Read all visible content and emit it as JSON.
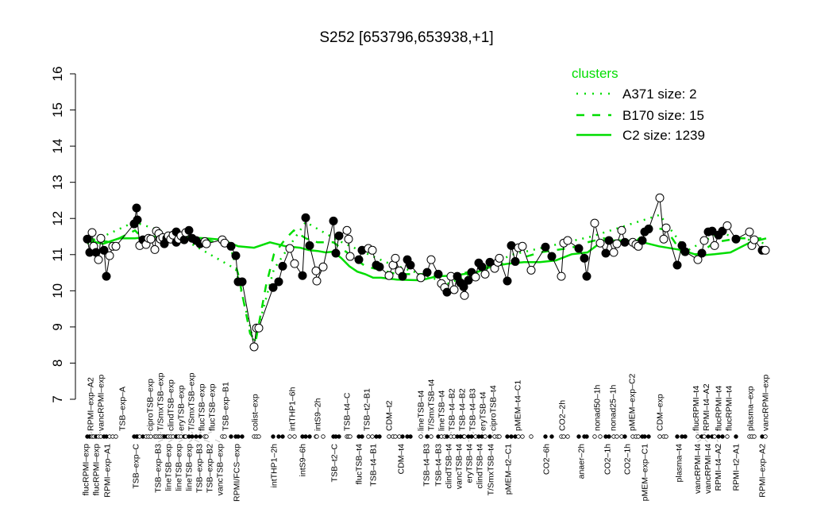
{
  "chart_data": {
    "type": "line",
    "title": "S252 [653796,653938,+1]",
    "xlabel": "",
    "ylabel": "",
    "ylim": [
      7,
      16
    ],
    "xlim": [
      0,
      215
    ],
    "yticks": [
      7,
      8,
      9,
      10,
      11,
      12,
      13,
      14,
      15,
      16
    ],
    "grid": false,
    "legend": {
      "title": "clusters",
      "placement": "top-right",
      "color": "#00dd00",
      "entries": [
        {
          "label": "A371 size: 2",
          "style": "dotted"
        },
        {
          "label": "B170 size: 15",
          "style": "dashed"
        },
        {
          "label": "C2 size: 1239",
          "style": "solid"
        }
      ]
    },
    "colors": {
      "points": "#000000",
      "clusters": "#00dd00"
    },
    "points_note_fields": [
      "x",
      "value",
      "filled"
    ],
    "points": [
      [
        1.25,
        11.43,
        1
      ],
      [
        2,
        11.06,
        1
      ],
      [
        2.75,
        11.61,
        0
      ],
      [
        3.25,
        11.23,
        0
      ],
      [
        4,
        11.06,
        1
      ],
      [
        4.75,
        10.86,
        0
      ],
      [
        5.5,
        11.45,
        0
      ],
      [
        6.5,
        11.12,
        1
      ],
      [
        7.25,
        10.4,
        1
      ],
      [
        8.25,
        10.97,
        0
      ],
      [
        9.25,
        11.23,
        0
      ],
      [
        10.25,
        11.23,
        0
      ],
      [
        16,
        11.85,
        1
      ],
      [
        16.75,
        12.29,
        1
      ],
      [
        17,
        11.96,
        1
      ],
      [
        17.75,
        11.25,
        0
      ],
      [
        18.75,
        11.41,
        1
      ],
      [
        19.75,
        11.28,
        0
      ],
      [
        20.5,
        11.45,
        0
      ],
      [
        21.25,
        11.43,
        0
      ],
      [
        22.5,
        11.14,
        0
      ],
      [
        23,
        11.65,
        0
      ],
      [
        23.75,
        11.58,
        0
      ],
      [
        24.25,
        11.43,
        0
      ],
      [
        25,
        11.47,
        0
      ],
      [
        25.5,
        11.3,
        1
      ],
      [
        26.25,
        11.45,
        1
      ],
      [
        26.75,
        11.52,
        0
      ],
      [
        27.5,
        11.43,
        0
      ],
      [
        28.25,
        11.54,
        0
      ],
      [
        29.25,
        11.63,
        1
      ],
      [
        29.25,
        11.34,
        1
      ],
      [
        30,
        11.43,
        0
      ],
      [
        30.75,
        11.52,
        0
      ],
      [
        31.75,
        11.41,
        1
      ],
      [
        32.25,
        11.61,
        0
      ],
      [
        33.25,
        11.67,
        1
      ],
      [
        34.25,
        11.45,
        1
      ],
      [
        35.5,
        11.39,
        1
      ],
      [
        36.75,
        11.3,
        1
      ],
      [
        38.25,
        11.36,
        0
      ],
      [
        38.75,
        11.3,
        0
      ],
      [
        43.75,
        11.41,
        0
      ],
      [
        44.5,
        11.32,
        0
      ],
      [
        46.5,
        11.23,
        1
      ],
      [
        48,
        10.97,
        1
      ],
      [
        48.75,
        10.25,
        1
      ],
      [
        50,
        10.25,
        1
      ],
      [
        53.75,
        8.45,
        0
      ],
      [
        54.5,
        8.97,
        0
      ],
      [
        55.25,
        8.97,
        0
      ],
      [
        59.75,
        10.09,
        1
      ],
      [
        61.5,
        10.25,
        1
      ],
      [
        62.75,
        10.68,
        1
      ],
      [
        65,
        11.17,
        0
      ],
      [
        66.5,
        10.75,
        0
      ],
      [
        69,
        10.42,
        1
      ],
      [
        70,
        12.02,
        1
      ],
      [
        71.25,
        11.25,
        1
      ],
      [
        73.25,
        10.55,
        0
      ],
      [
        73.5,
        10.27,
        0
      ],
      [
        75.5,
        10.66,
        0
      ],
      [
        78.75,
        11.93,
        1
      ],
      [
        79.5,
        11.04,
        1
      ],
      [
        80.5,
        11.52,
        1
      ],
      [
        83,
        11.67,
        0
      ],
      [
        83.5,
        11.43,
        0
      ],
      [
        84,
        10.95,
        0
      ],
      [
        86.75,
        10.86,
        1
      ],
      [
        87.75,
        11.12,
        1
      ],
      [
        89.75,
        11.17,
        0
      ],
      [
        91,
        11.12,
        0
      ],
      [
        92.25,
        10.71,
        1
      ],
      [
        93.25,
        10.66,
        1
      ],
      [
        96.25,
        10.42,
        0
      ],
      [
        97.5,
        10.71,
        0
      ],
      [
        98.25,
        10.9,
        0
      ],
      [
        99.5,
        10.55,
        0
      ],
      [
        100.5,
        10.4,
        1
      ],
      [
        102,
        10.86,
        1
      ],
      [
        103,
        10.71,
        1
      ],
      [
        106.25,
        10.36,
        0
      ],
      [
        108.25,
        10.51,
        1
      ],
      [
        109.5,
        10.86,
        0
      ],
      [
        111.75,
        10.46,
        1
      ],
      [
        112.75,
        10.2,
        0
      ],
      [
        113.75,
        10.09,
        0
      ],
      [
        114.5,
        9.96,
        1
      ],
      [
        115.75,
        10.4,
        0
      ],
      [
        116.75,
        10.03,
        0
      ],
      [
        117.75,
        10.4,
        1
      ],
      [
        118.75,
        10.22,
        1
      ],
      [
        119.75,
        10.11,
        1
      ],
      [
        120,
        9.87,
        0
      ],
      [
        121.25,
        10.29,
        1
      ],
      [
        122.25,
        10.51,
        1
      ],
      [
        123.5,
        10.38,
        0
      ],
      [
        124.5,
        10.77,
        1
      ],
      [
        125.5,
        10.66,
        1
      ],
      [
        126.5,
        10.46,
        0
      ],
      [
        128,
        10.79,
        1
      ],
      [
        129.5,
        10.62,
        0
      ],
      [
        130.5,
        10.79,
        0
      ],
      [
        131,
        10.9,
        0
      ],
      [
        133.5,
        10.27,
        1
      ],
      [
        134.75,
        11.25,
        1
      ],
      [
        136,
        10.81,
        1
      ],
      [
        137,
        11.19,
        0
      ],
      [
        138.25,
        11.23,
        0
      ],
      [
        141,
        10.57,
        0
      ],
      [
        145.5,
        11.21,
        1
      ],
      [
        147.5,
        10.95,
        1
      ],
      [
        150.5,
        10.4,
        0
      ],
      [
        151.25,
        11.32,
        0
      ],
      [
        152.5,
        11.39,
        0
      ],
      [
        156,
        11.17,
        1
      ],
      [
        157.75,
        10.9,
        1
      ],
      [
        158.5,
        10.4,
        1
      ],
      [
        161,
        11.87,
        0
      ],
      [
        162.75,
        11.32,
        0
      ],
      [
        164.5,
        11.04,
        1
      ],
      [
        165.5,
        11.39,
        1
      ],
      [
        167,
        11.06,
        0
      ],
      [
        168,
        11.3,
        0
      ],
      [
        169.5,
        11.67,
        0
      ],
      [
        170.5,
        11.34,
        1
      ],
      [
        173,
        11.34,
        0
      ],
      [
        174,
        11.28,
        0
      ],
      [
        174.75,
        11.23,
        0
      ],
      [
        176,
        11.39,
        1
      ],
      [
        176.75,
        11.63,
        1
      ],
      [
        178,
        11.71,
        1
      ],
      [
        181.5,
        12.57,
        0
      ],
      [
        182.75,
        11.43,
        0
      ],
      [
        183.5,
        11.74,
        0
      ],
      [
        187,
        10.71,
        1
      ],
      [
        188.5,
        11.25,
        1
      ],
      [
        189.5,
        11.08,
        1
      ],
      [
        193.5,
        10.86,
        0
      ],
      [
        194.75,
        11.04,
        1
      ],
      [
        195.5,
        11.39,
        0
      ],
      [
        196.75,
        11.63,
        1
      ],
      [
        198,
        11.65,
        1
      ],
      [
        198.75,
        11.25,
        0
      ],
      [
        200,
        11.54,
        1
      ],
      [
        201.25,
        11.65,
        1
      ],
      [
        202.75,
        11.8,
        0
      ],
      [
        205.5,
        11.43,
        1
      ],
      [
        209.75,
        11.63,
        0
      ],
      [
        210.5,
        11.25,
        0
      ],
      [
        211.25,
        11.41,
        0
      ],
      [
        213.75,
        11.12,
        1
      ],
      [
        214.75,
        11.12,
        0
      ]
    ],
    "cluster_lines": {
      "C2": [
        [
          1.25,
          11.39
        ],
        [
          6.25,
          11.3
        ],
        [
          11.25,
          11.45
        ],
        [
          16.25,
          11.45
        ],
        [
          21.25,
          11.5
        ],
        [
          28.75,
          11.5
        ],
        [
          38.75,
          11.45
        ],
        [
          43.75,
          11.41
        ],
        [
          48.75,
          11.23
        ],
        [
          53.75,
          11.19
        ],
        [
          58.75,
          11.34
        ],
        [
          63.75,
          11.23
        ],
        [
          68.25,
          11.19
        ],
        [
          71.25,
          11.12
        ],
        [
          73.75,
          11.1
        ],
        [
          76.25,
          11.06
        ],
        [
          78.75,
          11.08
        ],
        [
          81.25,
          10.9
        ],
        [
          83.75,
          10.68
        ],
        [
          86.25,
          10.53
        ],
        [
          88.75,
          10.46
        ],
        [
          91.25,
          10.36
        ],
        [
          93.75,
          10.36
        ],
        [
          98.75,
          10.31
        ],
        [
          106.25,
          10.29
        ],
        [
          111.25,
          10.4
        ],
        [
          116.25,
          10.42
        ],
        [
          123.75,
          10.51
        ],
        [
          128.75,
          10.68
        ],
        [
          133.75,
          10.75
        ],
        [
          138.75,
          10.79
        ],
        [
          143.75,
          10.79
        ],
        [
          148.75,
          10.84
        ],
        [
          153.75,
          11.01
        ],
        [
          158.75,
          11.06
        ],
        [
          163.75,
          11.39
        ],
        [
          171.25,
          11.39
        ],
        [
          176.25,
          11.34
        ],
        [
          181.25,
          11.23
        ],
        [
          188.75,
          11.12
        ],
        [
          193.75,
          10.97
        ],
        [
          198.75,
          11.01
        ],
        [
          203.75,
          11.06
        ],
        [
          210,
          11.34
        ],
        [
          215,
          11.45
        ]
      ],
      "B170": [
        [
          1.25,
          11.45
        ],
        [
          8.75,
          11.34
        ],
        [
          16.25,
          11.67
        ],
        [
          20,
          11.34
        ],
        [
          23.75,
          11.45
        ],
        [
          38.75,
          11.41
        ],
        [
          46.25,
          11.23
        ],
        [
          48.75,
          10.46
        ],
        [
          52.5,
          8.82
        ],
        [
          54.25,
          8.6
        ],
        [
          57.5,
          10.14
        ],
        [
          60,
          11.01
        ],
        [
          63.75,
          11.45
        ],
        [
          66.25,
          11.67
        ],
        [
          70,
          11.45
        ],
        [
          73.75,
          11.34
        ],
        [
          78.75,
          11.34
        ],
        [
          83.75,
          11.01
        ],
        [
          88.75,
          10.68
        ],
        [
          93.75,
          10.57
        ],
        [
          98.75,
          10.46
        ],
        [
          108.75,
          10.46
        ],
        [
          113.75,
          10.36
        ],
        [
          123.75,
          10.57
        ],
        [
          133.75,
          10.79
        ],
        [
          143.75,
          11.06
        ],
        [
          153.75,
          11.19
        ],
        [
          158.75,
          11.34
        ],
        [
          163.75,
          11.45
        ],
        [
          173.75,
          11.34
        ],
        [
          178.75,
          11.78
        ],
        [
          183.75,
          11.67
        ],
        [
          188.75,
          11.01
        ],
        [
          193.75,
          11.01
        ],
        [
          198.75,
          11.34
        ],
        [
          206.25,
          11.45
        ],
        [
          215,
          11.45
        ]
      ],
      "A371": [
        [
          1.25,
          11.3
        ],
        [
          16,
          11.9
        ],
        [
          30,
          11.5
        ],
        [
          48,
          10.6
        ],
        [
          53.75,
          8.55
        ],
        [
          60,
          10.6
        ],
        [
          70,
          11.9
        ],
        [
          80,
          11.4
        ],
        [
          95,
          10.8
        ],
        [
          115,
          10.2
        ],
        [
          135,
          11.0
        ],
        [
          160,
          11.5
        ],
        [
          181.5,
          12.1
        ],
        [
          190,
          11.1
        ],
        [
          200,
          11.6
        ],
        [
          215,
          11.3
        ]
      ]
    },
    "top_labels": [
      [
        "RPMI–exp–A2",
        2.75
      ],
      [
        "vancRPMI–exp",
        5
      ],
      [
        "TSB–exp–A",
        12.25
      ],
      [
        "ciproTSB–exp",
        21.25
      ],
      [
        "T/SmxTSB–exp",
        24.5
      ],
      [
        "clindTSB–exp",
        27.75
      ],
      [
        "eryTSB–exp",
        31.25
      ],
      [
        "T/SmxTSB–exp",
        34.5
      ],
      [
        "flucTSB–exp",
        36.5
      ],
      [
        "flucTSB–exp",
        39.25
      ],
      [
        "TSB–exp–B1",
        44.75
      ],
      [
        "colist–exp",
        54
      ],
      [
        "intTHP1–6h",
        65.75
      ],
      [
        "intS9–2h",
        73.75
      ],
      [
        "TSB–t4–C",
        83
      ],
      [
        "TSB–t2–B1",
        89.25
      ],
      [
        "CDM–t2",
        96.25
      ],
      [
        "lineTSB–t4",
        107
      ],
      [
        "T/SmxTSB–t4",
        109.5
      ],
      [
        "lineTSB–t4",
        112.75
      ],
      [
        "TSB–t4–B2",
        115.5
      ],
      [
        "TSB–t4–B2",
        119.25
      ],
      [
        "TSB–t4–B3",
        123
      ],
      [
        "eryTSB–t4",
        125.5
      ],
      [
        "ciproTSB–t4",
        128.75
      ],
      [
        "pMEM–t4–C1",
        136.75
      ],
      [
        "CO2–2h",
        150.75
      ],
      [
        "nonad50–1h",
        161.75
      ],
      [
        "nonad25–1h",
        166.75
      ],
      [
        "pMEM–exp–C2",
        172.75
      ],
      [
        "CDM–exp",
        181.5
      ],
      [
        "flucRPMI–t4",
        193.75
      ],
      [
        "RPMI–t4–A2",
        195.25
      ],
      [
        "flucRPMI–t4",
        200
      ],
      [
        "flucRPMI–t4",
        203.25
      ],
      [
        "plasma–exp",
        210
      ],
      [
        "vancRPMI–exp",
        214.75
      ]
    ],
    "bottom_labels": [
      [
        "flucRPMI–exp",
        0.75
      ],
      [
        "flucRPMI–exp",
        4
      ],
      [
        "RPMI–exp–A1",
        7.5
      ],
      [
        "TSB–exp–C",
        16.5
      ],
      [
        "TSB–exp–B3",
        25
      ],
      [
        "lineTSB–exp",
        28
      ],
      [
        "lineTSB–exp",
        31.25
      ],
      [
        "lineTSB–exp",
        34.25
      ],
      [
        "TSB–exp–B3",
        35
      ],
      [
        "TSB–exp–B2",
        38
      ],
      [
        "vancTSB–exp",
        41.5
      ],
      [
        "RPMI/FCS–exp",
        48.25
      ],
      [
        "intTHP1–2h",
        60
      ],
      [
        "intS9–6h",
        69
      ],
      [
        "TSB–t2–C",
        79
      ],
      [
        "flucTSB–t4",
        86.75
      ],
      [
        "TSB–t4–B1",
        91.25
      ],
      [
        "CDM–t4",
        100
      ],
      [
        "TSB–t4–B3",
        108
      ],
      [
        "TSB–t4–B3",
        111.75
      ],
      [
        "clindTSB–t4",
        115
      ],
      [
        "vancTSB–t4",
        118.25
      ],
      [
        "eryTSB–t4",
        121.25
      ],
      [
        "clindTSB–t4",
        124.75
      ],
      [
        "T/SmxTSB–t4",
        128.25
      ],
      [
        "pMEM–t2–C1",
        133.75
      ],
      [
        "CO2–6h",
        145.75
      ],
      [
        "anaer–2h",
        156.75
      ],
      [
        "CO2–1h",
        165
      ],
      [
        "CO2–1h",
        171.25
      ],
      [
        "pMEM–exp–C1",
        176.75
      ],
      [
        "plasma–t4",
        187.5
      ],
      [
        "vancRPMI–t4",
        194.5
      ],
      [
        "vancRPMI–t4",
        195.75
      ],
      [
        "RPMI–t4–A2",
        199.5
      ],
      [
        "RPMI–t2–A1",
        205.5
      ],
      [
        "RPMI–exp–A2",
        213.75
      ]
    ]
  }
}
